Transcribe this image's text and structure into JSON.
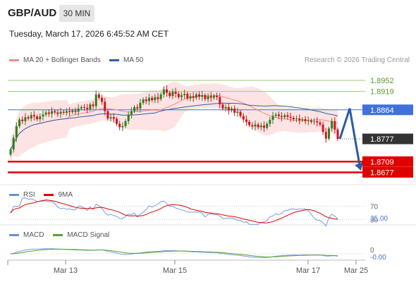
{
  "header": {
    "pair": "GBP/AUD",
    "timeframe": "30 MIN",
    "datetime": "Tuesday, March 17, 2026 6:45:52 AM CET"
  },
  "legend": {
    "ma20": "MA 20 + Bollinger Bands",
    "ma50": "MA 50",
    "source": "Research © 2026 Trading Central",
    "rsi": "RSI",
    "rsi_ma": "9MA",
    "macd": "MACD",
    "macd_signal": "MACD Signal"
  },
  "colors": {
    "ma20": "#f48a8a",
    "ma50": "#2f5fa8",
    "band_fill": "#fde3e3",
    "candle_up": "#2e7d1e",
    "candle_down": "#d3121c",
    "resistance": "#9acd6e",
    "pivot": "#3f72d9",
    "support": "#e00000",
    "price_tag": "#333333",
    "forecast_arrow": "#2a5aa6"
  },
  "chart_data": {
    "type": "candlestick",
    "price_range": [
      1.864,
      1.899
    ],
    "x_ticks": [
      "Mar 13",
      "Mar 15",
      "Mar 17",
      "Mar 25"
    ],
    "levels": [
      {
        "value": 1.8952,
        "label": "1.8952",
        "kind": "resistance"
      },
      {
        "value": 1.8919,
        "label": "1.8919",
        "kind": "resistance"
      },
      {
        "value": 1.8864,
        "label": "1.8864",
        "kind": "pivot"
      },
      {
        "value": 1.8709,
        "label": "1.8709",
        "kind": "support"
      },
      {
        "value": 1.8677,
        "label": "1.8677",
        "kind": "support"
      }
    ],
    "last_price": {
      "value": 1.8777,
      "label": "1.8777"
    },
    "close": [
      1.8745,
      1.878,
      1.8815,
      1.8835,
      1.883,
      1.8842,
      1.8838,
      1.8848,
      1.8844,
      1.8836,
      1.8844,
      1.885,
      1.8856,
      1.8852,
      1.886,
      1.8856,
      1.8852,
      1.8858,
      1.8855,
      1.886,
      1.8857,
      1.8862,
      1.8858,
      1.8868,
      1.8872,
      1.887,
      1.8866,
      1.888,
      1.8875,
      1.891,
      1.89,
      1.8888,
      1.886,
      1.8838,
      1.8842,
      1.8837,
      1.8822,
      1.8812,
      1.8815,
      1.883,
      1.885,
      1.886,
      1.8872,
      1.8868,
      1.8885,
      1.8895,
      1.889,
      1.89,
      1.8893,
      1.8902,
      1.8896,
      1.891,
      1.8925,
      1.8915,
      1.8905,
      1.8918,
      1.8912,
      1.8902,
      1.8908,
      1.8912,
      1.8898,
      1.8905,
      1.89,
      1.891,
      1.8903,
      1.8908,
      1.8896,
      1.8905,
      1.89,
      1.8906,
      1.8902,
      1.888,
      1.8868,
      1.8872,
      1.8862,
      1.8868,
      1.8855,
      1.8858,
      1.8845,
      1.8835,
      1.8828,
      1.8818,
      1.8814,
      1.882,
      1.8812,
      1.8817,
      1.881,
      1.8822,
      1.8834,
      1.8846,
      1.885,
      1.8845,
      1.8842,
      1.8848,
      1.8843,
      1.884,
      1.8836,
      1.8838,
      1.8833,
      1.8836,
      1.883,
      1.8832,
      1.8828,
      1.883,
      1.8826,
      1.882,
      1.8798,
      1.8778,
      1.8808,
      1.883,
      1.8805,
      1.8777
    ],
    "rsi": {
      "levels": [
        30,
        70
      ],
      "current": "35.00"
    },
    "macd": {
      "level": 0,
      "current": "-0.00"
    }
  }
}
